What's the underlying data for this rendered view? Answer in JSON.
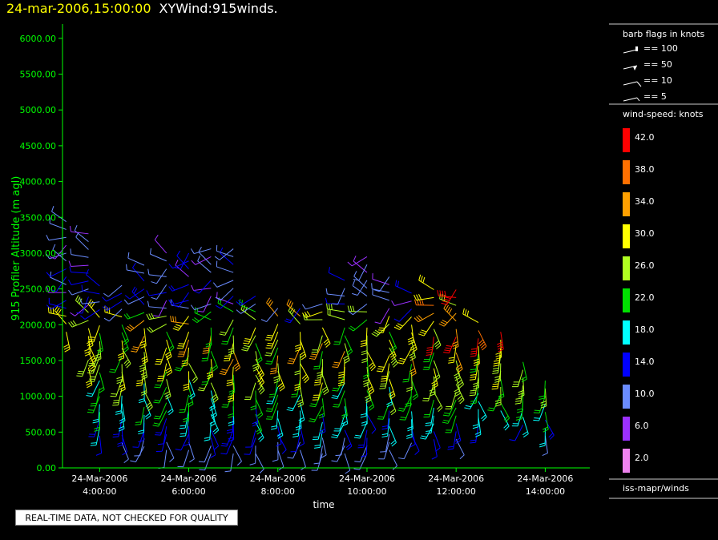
{
  "header": {
    "timestamp": "24-mar-2006,15:00:00",
    "title": "XYWind:915winds."
  },
  "disclaimer": "REAL-TIME DATA, NOT CHECKED FOR QUALITY",
  "legend": {
    "barb_title": "barb flags in knots",
    "barb_items": [
      "== 100",
      "== 50",
      "== 10",
      "== 5"
    ],
    "speed_title": "wind-speed: knots",
    "speed_bins": [
      {
        "label": "42.0",
        "color": "#ff0000"
      },
      {
        "label": "38.0",
        "color": "#ff7000"
      },
      {
        "label": "34.0",
        "color": "#ffa000"
      },
      {
        "label": "30.0",
        "color": "#ffff00"
      },
      {
        "label": "26.0",
        "color": "#b0ff20"
      },
      {
        "label": "22.0",
        "color": "#00e000"
      },
      {
        "label": "18.0",
        "color": "#00ffff"
      },
      {
        "label": "14.0",
        "color": "#0000ff"
      },
      {
        "label": "10.0",
        "color": "#6a8cff"
      },
      {
        "label": "6.0",
        "color": "#9b30ff"
      },
      {
        "label": "2.0",
        "color": "#ee82ee"
      }
    ],
    "source": "iss-mapr/winds"
  },
  "chart_data": {
    "type": "scatter",
    "title": "XYWind:915winds.",
    "xlabel": "time",
    "ylabel": "915 Profiler Altitude (m agl)",
    "xlim": [
      "24-Mar-2006 03:10",
      "24-Mar-2006 15:00"
    ],
    "ylim": [
      0,
      6200
    ],
    "x_ticks": [
      [
        "24-Mar-2006",
        "4:00:00"
      ],
      [
        "24-Mar-2006",
        "6:00:00"
      ],
      [
        "24-Mar-2006",
        "8:00:00"
      ],
      [
        "24-Mar-2006",
        "10:00:00"
      ],
      [
        "24-Mar-2006",
        "12:00:00"
      ],
      [
        "24-Mar-2006",
        "14:00:00"
      ]
    ],
    "y_ticks": [
      "0.00",
      "500.00",
      "1000.00",
      "1500.00",
      "2000.00",
      "2500.00",
      "3000.00",
      "3500.00",
      "4000.00",
      "4500.00",
      "5000.00",
      "5500.00",
      "6000.00"
    ],
    "axis_color": "#00ff00",
    "profiles": [
      {
        "time": "24-Mar-2006 03:15",
        "top_m": 3500,
        "bottom_m": 1900
      },
      {
        "time": "24-Mar-2006 03:45",
        "top_m": 3300,
        "bottom_m": 1400
      },
      {
        "time": "24-Mar-2006 04:00",
        "top_m": 2600,
        "bottom_m": 450
      },
      {
        "time": "24-Mar-2006 04:30",
        "top_m": 2600,
        "bottom_m": 350
      },
      {
        "time": "24-Mar-2006 05:00",
        "top_m": 2900,
        "bottom_m": 300
      },
      {
        "time": "24-Mar-2006 05:30",
        "top_m": 3100,
        "bottom_m": 250
      },
      {
        "time": "24-Mar-2006 06:00",
        "top_m": 3000,
        "bottom_m": 250
      },
      {
        "time": "24-Mar-2006 06:30",
        "top_m": 3100,
        "bottom_m": 200
      },
      {
        "time": "24-Mar-2006 07:00",
        "top_m": 3100,
        "bottom_m": 200
      },
      {
        "time": "24-Mar-2006 07:30",
        "top_m": 2500,
        "bottom_m": 200
      },
      {
        "time": "24-Mar-2006 08:00",
        "top_m": 2300,
        "bottom_m": 250
      },
      {
        "time": "24-Mar-2006 08:30",
        "top_m": 2300,
        "bottom_m": 250
      },
      {
        "time": "24-Mar-2006 09:00",
        "top_m": 2300,
        "bottom_m": 200
      },
      {
        "time": "24-Mar-2006 09:30",
        "top_m": 2700,
        "bottom_m": 200
      },
      {
        "time": "24-Mar-2006 10:00",
        "top_m": 3000,
        "bottom_m": 200
      },
      {
        "time": "24-Mar-2006 10:30",
        "top_m": 2700,
        "bottom_m": 250
      },
      {
        "time": "24-Mar-2006 11:00",
        "top_m": 2500,
        "bottom_m": 350
      },
      {
        "time": "24-Mar-2006 11:30",
        "top_m": 2500,
        "bottom_m": 400
      },
      {
        "time": "24-Mar-2006 12:00",
        "top_m": 2500,
        "bottom_m": 400
      },
      {
        "time": "24-Mar-2006 12:30",
        "top_m": 2100,
        "bottom_m": 600
      },
      {
        "time": "24-Mar-2006 13:00",
        "top_m": 2000,
        "bottom_m": 800
      },
      {
        "time": "24-Mar-2006 13:30",
        "top_m": 1500,
        "bottom_m": 600
      },
      {
        "time": "24-Mar-2006 14:00",
        "top_m": 1300,
        "bottom_m": 450
      }
    ]
  }
}
